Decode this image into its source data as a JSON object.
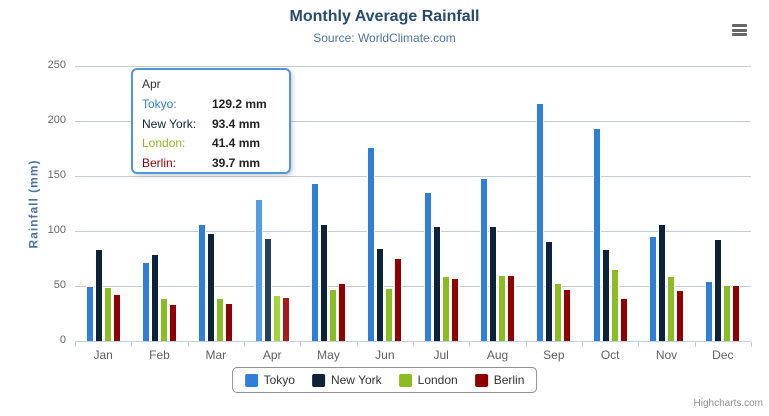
{
  "chart": {
    "title": "Monthly Average Rainfall",
    "subtitle": "Source: WorldClimate.com",
    "credits": "Highcharts.com"
  },
  "icons": {
    "export_menu": "hamburger-menu-icon"
  },
  "colors": {
    "title": "#274b6d",
    "subtitle": "#4d759e",
    "axis_title": "#4d759e",
    "axis_labels": "#666666",
    "grid_line": "#c7ccd1",
    "axis_line": "#c0d0e0",
    "tooltip_border": "#4f95e0",
    "legend_border": "#909090",
    "credits_text": "#909090"
  },
  "chart_data": {
    "type": "bar",
    "title": "Monthly Average Rainfall",
    "subtitle": "Source: WorldClimate.com",
    "xlabel": "",
    "ylabel": "Rainfall (mm)",
    "ylim": [
      0,
      250
    ],
    "yticks": [
      0,
      50,
      100,
      150,
      200,
      250
    ],
    "grid": true,
    "legend_position": "bottom",
    "categories": [
      "Jan",
      "Feb",
      "Mar",
      "Apr",
      "May",
      "Jun",
      "Jul",
      "Aug",
      "Sep",
      "Oct",
      "Nov",
      "Dec"
    ],
    "series": [
      {
        "name": "Tokyo",
        "color": "#2f7ed8",
        "hover_color": "#529dea",
        "values": [
          49.9,
          71.5,
          106.4,
          129.2,
          144.0,
          176.0,
          135.6,
          148.5,
          216.4,
          194.1,
          95.6,
          54.4
        ]
      },
      {
        "name": "New York",
        "color": "#0d233a",
        "hover_color": "#29405a",
        "values": [
          83.6,
          78.8,
          98.5,
          93.4,
          106.0,
          84.5,
          105.0,
          104.3,
          91.2,
          83.5,
          106.6,
          92.3
        ]
      },
      {
        "name": "London",
        "color": "#8bbc21",
        "hover_color": "#a4d53c",
        "values": [
          48.9,
          38.8,
          39.3,
          41.4,
          47.0,
          48.3,
          59.0,
          59.6,
          52.4,
          65.2,
          59.3,
          51.2
        ]
      },
      {
        "name": "Berlin",
        "color": "#910000",
        "hover_color": "#ab1a1a",
        "values": [
          42.4,
          33.2,
          34.5,
          39.7,
          52.6,
          75.5,
          57.4,
          60.4,
          47.6,
          39.1,
          46.8,
          51.1
        ]
      }
    ],
    "hovered_category": "Apr"
  },
  "tooltip": {
    "header": "Apr",
    "rows": [
      {
        "label": "Tokyo:",
        "value": "129.2 mm",
        "color": "#2f7ed8"
      },
      {
        "label": "New York:",
        "value": "93.4 mm",
        "color": "#0d233a"
      },
      {
        "label": "London:",
        "value": "41.4 mm",
        "color": "#8bbc21"
      },
      {
        "label": "Berlin:",
        "value": "39.7 mm",
        "color": "#910000"
      }
    ]
  }
}
